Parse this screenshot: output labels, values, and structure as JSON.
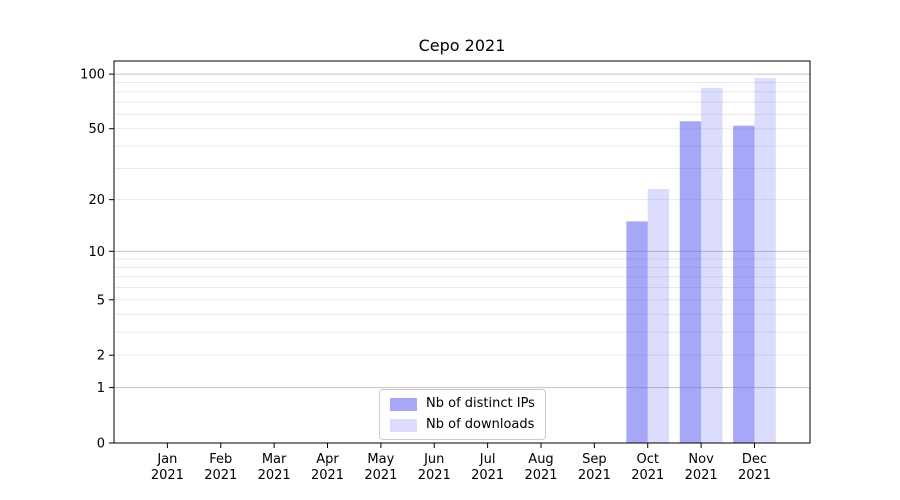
{
  "chart_data": {
    "type": "bar",
    "title": "Cepo 2021",
    "categories": [
      "Jan",
      "Feb",
      "Mar",
      "Apr",
      "May",
      "Jun",
      "Jul",
      "Aug",
      "Sep",
      "Oct",
      "Nov",
      "Dec"
    ],
    "category_year": "2021",
    "series": [
      {
        "name": "Nb of distinct IPs",
        "color": "rgba(80,80,240,0.5)",
        "values": [
          0,
          0,
          0,
          0,
          0,
          0,
          0,
          0,
          0,
          15,
          55,
          52
        ]
      },
      {
        "name": "Nb of downloads",
        "color": "rgba(80,80,240,0.2)",
        "values": [
          0,
          0,
          0,
          0,
          0,
          0,
          0,
          0,
          0,
          23,
          84,
          95
        ]
      }
    ],
    "y_axis": {
      "scale": "log1p",
      "ticks": [
        0,
        1,
        2,
        5,
        10,
        20,
        50,
        100
      ],
      "minor_ticks": [
        3,
        4,
        6,
        7,
        8,
        9,
        30,
        40,
        60,
        70,
        80,
        90
      ],
      "major_gridlines": [
        1,
        10,
        100
      ],
      "max": 118
    },
    "x_axis": {
      "label_lines": 2
    },
    "grid": {
      "major_color": "#c4c4c4",
      "minor_color": "#eaeaea"
    },
    "axis_color": "#000000",
    "legend_position": "bottom-center-inside"
  }
}
